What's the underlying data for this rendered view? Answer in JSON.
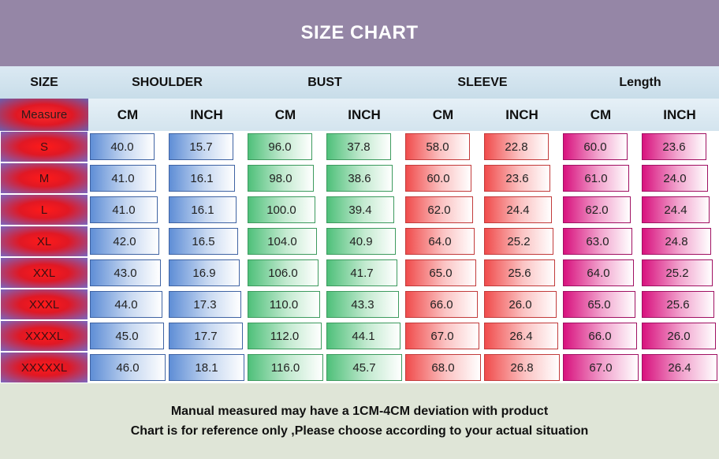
{
  "title": "SIZE CHART",
  "header": {
    "size": "SIZE",
    "groups": [
      "SHOULDER",
      "BUST",
      "SLEEVE",
      "Length"
    ],
    "measure": "Measure",
    "units": [
      "CM",
      "INCH",
      "CM",
      "INCH",
      "CM",
      "INCH",
      "CM",
      "INCH"
    ]
  },
  "rows": [
    {
      "size": "S",
      "values": [
        "40.0",
        "15.7",
        "96.0",
        "37.8",
        "58.0",
        "22.8",
        "60.0",
        "23.6"
      ]
    },
    {
      "size": "M",
      "values": [
        "41.0",
        "16.1",
        "98.0",
        "38.6",
        "60.0",
        "23.6",
        "61.0",
        "24.0"
      ]
    },
    {
      "size": "L",
      "values": [
        "41.0",
        "16.1",
        "100.0",
        "39.4",
        "62.0",
        "24.4",
        "62.0",
        "24.4"
      ]
    },
    {
      "size": "XL",
      "values": [
        "42.0",
        "16.5",
        "104.0",
        "40.9",
        "64.0",
        "25.2",
        "63.0",
        "24.8"
      ]
    },
    {
      "size": "XXL",
      "values": [
        "43.0",
        "16.9",
        "106.0",
        "41.7",
        "65.0",
        "25.6",
        "64.0",
        "25.2"
      ]
    },
    {
      "size": "XXXL",
      "values": [
        "44.0",
        "17.3",
        "110.0",
        "43.3",
        "66.0",
        "26.0",
        "65.0",
        "25.6"
      ]
    },
    {
      "size": "XXXXL",
      "values": [
        "45.0",
        "17.7",
        "112.0",
        "44.1",
        "67.0",
        "26.4",
        "66.0",
        "26.0"
      ]
    },
    {
      "size": "XXXXXL",
      "values": [
        "46.0",
        "18.1",
        "116.0",
        "45.7",
        "68.0",
        "26.8",
        "67.0",
        "26.4"
      ]
    }
  ],
  "footer": {
    "line1": "Manual measured may have a 1CM-4CM deviation with product",
    "line2": "Chart is for reference only ,Please choose according to your actual situation"
  },
  "colors": {
    "title_bg": "#9586a6",
    "shoulder": "#5f8ed6",
    "bust": "#4fc07a",
    "sleeve": "#f04c4c",
    "length": "#d8127e",
    "size_cell": "#e01824",
    "footer_bg": "#dfe5d7"
  }
}
